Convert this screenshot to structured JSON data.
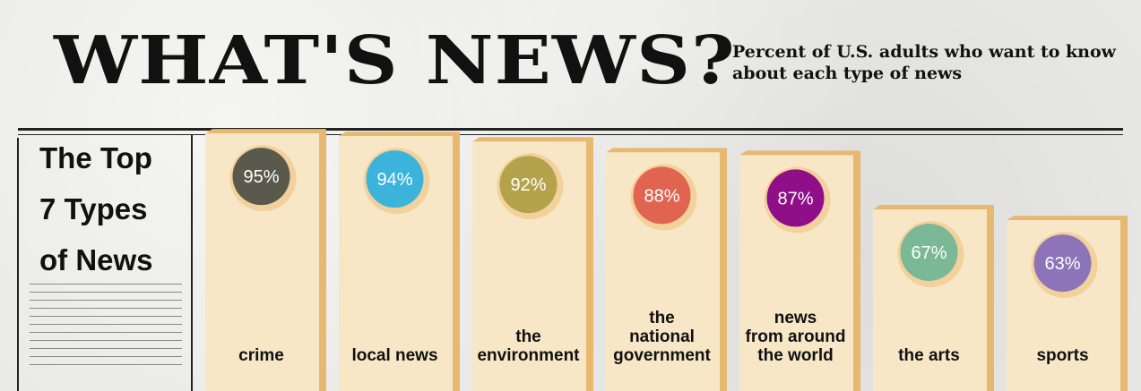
{
  "header": {
    "title": "WHAT'S NEWS?",
    "subtitle": "Percent of U.S. adults who want to know about each type of news"
  },
  "sidebar": {
    "heading_lines": [
      "The Top",
      "7 Types",
      "of News"
    ]
  },
  "chart_data": {
    "type": "bar",
    "categories": [
      "crime",
      "local news",
      "the environment",
      "the national government",
      "news from around the world",
      "the arts",
      "sports"
    ],
    "category_label_lines": [
      [
        "crime"
      ],
      [
        "local news"
      ],
      [
        "the",
        "environment"
      ],
      [
        "the",
        "national",
        "government"
      ],
      [
        "news",
        "from around",
        "the world"
      ],
      [
        "the arts"
      ],
      [
        "sports"
      ]
    ],
    "values": [
      95,
      94,
      92,
      88,
      87,
      67,
      63
    ],
    "value_labels": [
      "95%",
      "94%",
      "92%",
      "88%",
      "87%",
      "67%",
      "63%"
    ],
    "unit": "%",
    "ylim": [
      0,
      100
    ],
    "bar_color": "#f7e7c7",
    "bar_edge_color": "#e7b870",
    "circle_colors": [
      "#5a5a4c",
      "#3cb3db",
      "#b5a34c",
      "#e0644f",
      "#8e0f88",
      "#7ab896",
      "#8d74b8"
    ]
  }
}
